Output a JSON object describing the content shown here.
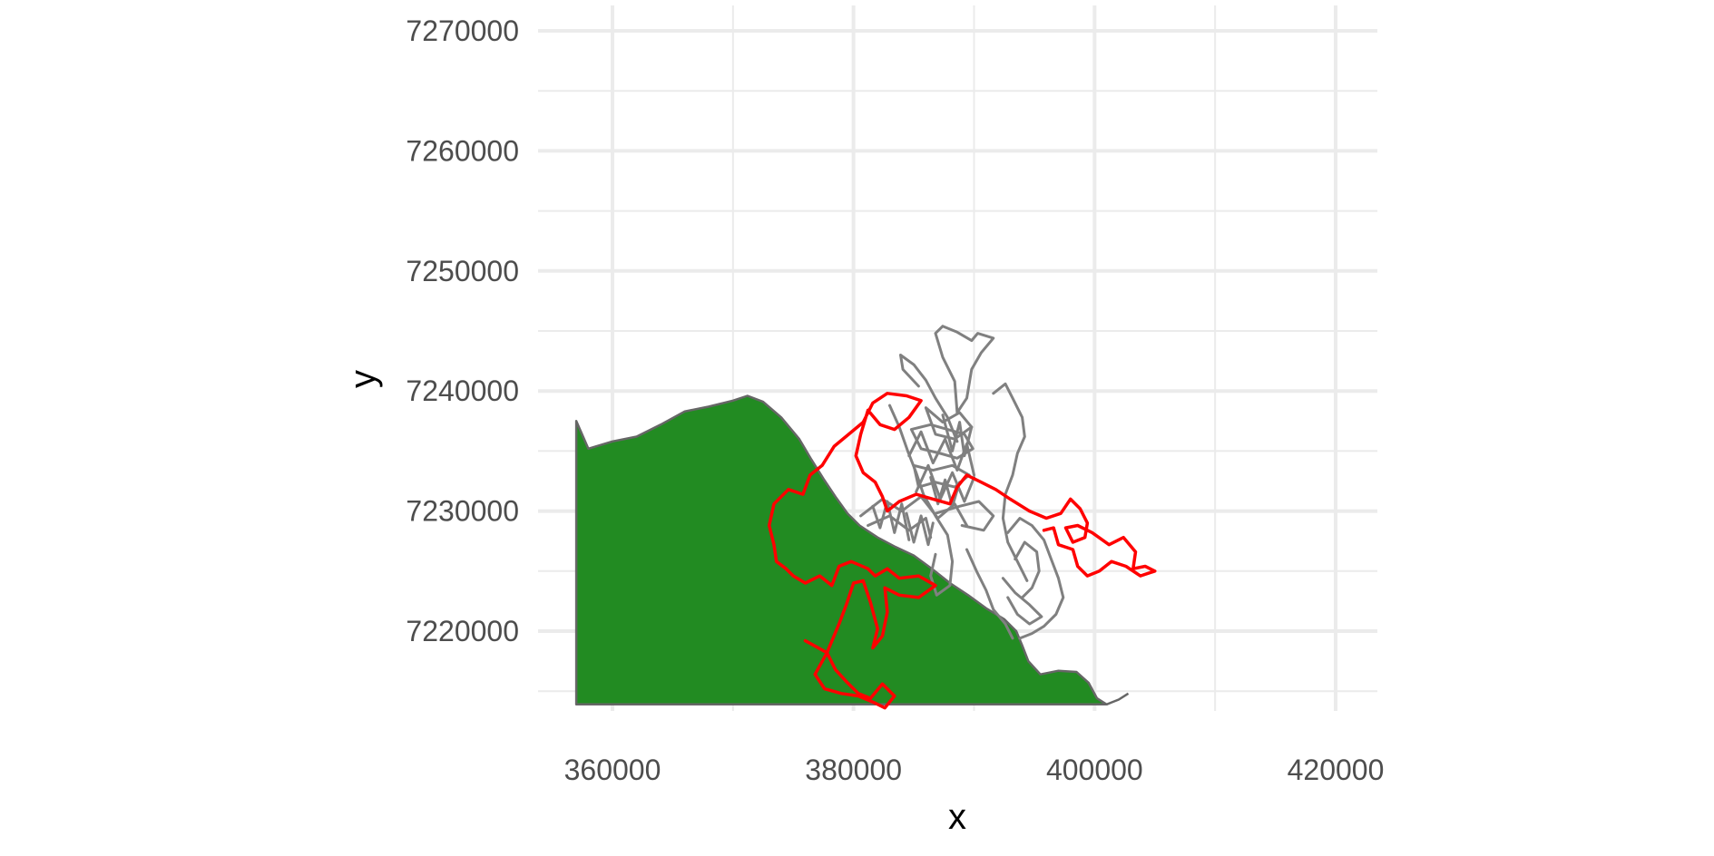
{
  "chart_data": {
    "type": "map",
    "title": "",
    "xlabel": "x",
    "ylabel": "y",
    "xlim": [
      354000,
      424000
    ],
    "ylim": [
      7213000,
      7271000
    ],
    "x_ticks": [
      360000,
      380000,
      400000,
      420000
    ],
    "x_tick_labels": [
      "360000",
      "380000",
      "400000",
      "420000"
    ],
    "y_ticks": [
      7220000,
      7230000,
      7240000,
      7250000,
      7260000,
      7270000
    ],
    "y_tick_labels": [
      "7220000",
      "7230000",
      "7240000",
      "7250000",
      "7260000",
      "7270000"
    ],
    "grid": true,
    "legend": "none",
    "colors": {
      "land_fill": "#228B22",
      "land_outline": "#666666",
      "gray_tracks": "#808080",
      "red_track": "#ff0000",
      "grid": "#ebebeb",
      "tick_text": "#4d4d4d"
    },
    "land_polygon": [
      [
        357000,
        7213900
      ],
      [
        357000,
        7237500
      ],
      [
        358000,
        7235200
      ],
      [
        360000,
        7235800
      ],
      [
        362000,
        7236200
      ],
      [
        364000,
        7237200
      ],
      [
        366000,
        7238300
      ],
      [
        368000,
        7238700
      ],
      [
        370000,
        7239200
      ],
      [
        371200,
        7239600
      ],
      [
        372500,
        7239100
      ],
      [
        374000,
        7237800
      ],
      [
        375500,
        7236000
      ],
      [
        376500,
        7234300
      ],
      [
        377500,
        7232700
      ],
      [
        378500,
        7231200
      ],
      [
        379500,
        7229800
      ],
      [
        380500,
        7228800
      ],
      [
        382000,
        7227800
      ],
      [
        383500,
        7227000
      ],
      [
        385000,
        7226300
      ],
      [
        386500,
        7225200
      ],
      [
        388000,
        7224000
      ],
      [
        389500,
        7223000
      ],
      [
        391000,
        7221900
      ],
      [
        392500,
        7221000
      ],
      [
        393500,
        7220000
      ],
      [
        394000,
        7218800
      ],
      [
        394500,
        7217500
      ],
      [
        395500,
        7216400
      ],
      [
        397000,
        7216700
      ],
      [
        398500,
        7216600
      ],
      [
        399500,
        7215700
      ],
      [
        400200,
        7214400
      ],
      [
        401000,
        7213900
      ]
    ],
    "coast_extension": [
      [
        401000,
        7213900
      ],
      [
        401500,
        7214100
      ],
      [
        402000,
        7214300
      ],
      [
        402800,
        7214800
      ]
    ],
    "gray_tracks": [
      [
        [
          388600,
          7238200
        ],
        [
          388400,
          7240800
        ],
        [
          387400,
          7242800
        ],
        [
          386800,
          7244800
        ],
        [
          387400,
          7245400
        ],
        [
          388600,
          7244900
        ],
        [
          389800,
          7244200
        ],
        [
          390300,
          7244800
        ],
        [
          391600,
          7244400
        ],
        [
          390600,
          7243200
        ],
        [
          389800,
          7241800
        ],
        [
          389400,
          7239400
        ],
        [
          388600,
          7238200
        ]
      ],
      [
        [
          385400,
          7240400
        ],
        [
          384100,
          7241800
        ],
        [
          383900,
          7243000
        ],
        [
          385000,
          7242200
        ],
        [
          386000,
          7240900
        ],
        [
          386800,
          7239400
        ],
        [
          387800,
          7237800
        ],
        [
          388600,
          7235800
        ]
      ],
      [
        [
          383000,
          7238800
        ],
        [
          383800,
          7237000
        ],
        [
          384500,
          7235000
        ],
        [
          385200,
          7233200
        ],
        [
          385800,
          7231400
        ],
        [
          386800,
          7229600
        ],
        [
          387800,
          7228000
        ],
        [
          388200,
          7225800
        ],
        [
          388000,
          7223800
        ],
        [
          386900,
          7223000
        ],
        [
          386400,
          7224600
        ],
        [
          386800,
          7226400
        ]
      ],
      [
        [
          384800,
          7236800
        ],
        [
          386400,
          7237200
        ],
        [
          387800,
          7236800
        ],
        [
          389200,
          7236400
        ],
        [
          389900,
          7235200
        ],
        [
          388600,
          7234400
        ],
        [
          387200,
          7234800
        ],
        [
          385600,
          7235200
        ],
        [
          384800,
          7236800
        ]
      ],
      [
        [
          385000,
          7233800
        ],
        [
          386600,
          7233400
        ],
        [
          388200,
          7233800
        ],
        [
          389600,
          7233000
        ],
        [
          388400,
          7232000
        ],
        [
          386800,
          7232400
        ],
        [
          385400,
          7232000
        ],
        [
          385000,
          7233800
        ]
      ],
      [
        [
          386000,
          7238600
        ],
        [
          387400,
          7237400
        ],
        [
          388800,
          7238200
        ],
        [
          389800,
          7237000
        ],
        [
          388400,
          7236000
        ],
        [
          386800,
          7236400
        ],
        [
          386000,
          7238600
        ]
      ],
      [
        [
          384600,
          7234600
        ],
        [
          385600,
          7236600
        ],
        [
          386600,
          7234000
        ],
        [
          387600,
          7236000
        ],
        [
          388600,
          7233400
        ],
        [
          389400,
          7235600
        ],
        [
          390000,
          7233000
        ]
      ],
      [
        [
          385200,
          7231600
        ],
        [
          386200,
          7233800
        ],
        [
          387200,
          7231000
        ],
        [
          388200,
          7233200
        ],
        [
          389200,
          7230800
        ],
        [
          390000,
          7232800
        ]
      ],
      [
        [
          386800,
          7229800
        ],
        [
          388800,
          7230400
        ],
        [
          390400,
          7230800
        ],
        [
          391600,
          7229600
        ],
        [
          390800,
          7228400
        ],
        [
          389000,
          7228800
        ]
      ],
      [
        [
          391600,
          7239800
        ],
        [
          392600,
          7240600
        ],
        [
          393200,
          7239400
        ],
        [
          394000,
          7237800
        ],
        [
          394200,
          7236200
        ],
        [
          393600,
          7234800
        ],
        [
          393200,
          7233000
        ],
        [
          392600,
          7231400
        ],
        [
          392400,
          7229400
        ],
        [
          392800,
          7227400
        ],
        [
          393600,
          7225800
        ],
        [
          394400,
          7224200
        ]
      ],
      [
        [
          389400,
          7226800
        ],
        [
          390200,
          7225000
        ],
        [
          391000,
          7223400
        ],
        [
          391600,
          7221800
        ],
        [
          392600,
          7220600
        ],
        [
          393200,
          7219400
        ]
      ],
      [
        [
          392800,
          7228200
        ],
        [
          393800,
          7229400
        ],
        [
          394800,
          7228800
        ],
        [
          395800,
          7227600
        ],
        [
          396400,
          7226000
        ],
        [
          397000,
          7224400
        ],
        [
          397400,
          7222800
        ],
        [
          396800,
          7221400
        ],
        [
          395800,
          7220400
        ],
        [
          394800,
          7219800
        ],
        [
          393800,
          7219400
        ]
      ],
      [
        [
          393400,
          7226000
        ],
        [
          394200,
          7227400
        ],
        [
          395200,
          7226600
        ],
        [
          395400,
          7225000
        ],
        [
          394800,
          7223600
        ],
        [
          394000,
          7222800
        ]
      ],
      [
        [
          392400,
          7224400
        ],
        [
          393400,
          7223200
        ],
        [
          394600,
          7222200
        ],
        [
          395600,
          7221200
        ],
        [
          394600,
          7220600
        ],
        [
          393600,
          7221400
        ],
        [
          392800,
          7222800
        ]
      ],
      [
        [
          380600,
          7229600
        ],
        [
          382400,
          7231000
        ],
        [
          384000,
          7230000
        ],
        [
          385600,
          7231200
        ],
        [
          387000,
          7229400
        ],
        [
          388400,
          7230600
        ],
        [
          389400,
          7228800
        ]
      ],
      [
        [
          381200,
          7228800
        ],
        [
          383000,
          7229600
        ],
        [
          384600,
          7228400
        ],
        [
          386000,
          7229400
        ],
        [
          386400,
          7227800
        ]
      ],
      [
        [
          381600,
          7230400
        ],
        [
          382200,
          7228600
        ],
        [
          382800,
          7230800
        ],
        [
          383400,
          7228200
        ],
        [
          384000,
          7230600
        ],
        [
          384600,
          7227600
        ]
      ],
      [
        [
          384400,
          7229800
        ],
        [
          385000,
          7227400
        ],
        [
          385600,
          7229600
        ],
        [
          386200,
          7227200
        ],
        [
          386600,
          7229000
        ]
      ],
      [
        [
          386400,
          7232800
        ],
        [
          387000,
          7230600
        ],
        [
          387600,
          7232600
        ],
        [
          388200,
          7230400
        ],
        [
          388800,
          7232400
        ]
      ],
      [
        [
          387400,
          7238000
        ],
        [
          388200,
          7235000
        ],
        [
          388800,
          7237400
        ],
        [
          389200,
          7234600
        ],
        [
          389800,
          7237000
        ]
      ]
    ],
    "red_track": [
      [
        376000,
        7219200
      ],
      [
        377800,
        7218200
      ],
      [
        378500,
        7216800
      ],
      [
        379400,
        7215800
      ],
      [
        380400,
        7214800
      ],
      [
        381400,
        7214400
      ],
      [
        382400,
        7215600
      ],
      [
        383400,
        7214600
      ],
      [
        382600,
        7213600
      ],
      [
        381800,
        7214000
      ],
      [
        380400,
        7214600
      ],
      [
        379000,
        7214800
      ],
      [
        377600,
        7215200
      ],
      [
        376800,
        7216400
      ],
      [
        377800,
        7218200
      ],
      [
        378800,
        7220600
      ],
      [
        379400,
        7222200
      ],
      [
        380000,
        7224000
      ],
      [
        380800,
        7224200
      ],
      [
        381400,
        7222400
      ],
      [
        382000,
        7220200
      ],
      [
        381600,
        7218600
      ],
      [
        382400,
        7219600
      ],
      [
        382800,
        7221600
      ],
      [
        382600,
        7223600
      ],
      [
        383800,
        7223000
      ],
      [
        385400,
        7222800
      ],
      [
        386800,
        7223800
      ],
      [
        385400,
        7224600
      ],
      [
        383800,
        7224400
      ],
      [
        382800,
        7225200
      ],
      [
        381800,
        7224600
      ],
      [
        381200,
        7225200
      ],
      [
        379800,
        7225800
      ],
      [
        378800,
        7225400
      ],
      [
        378200,
        7223800
      ],
      [
        377200,
        7224600
      ],
      [
        376000,
        7224000
      ],
      [
        375000,
        7224600
      ],
      [
        374400,
        7225200
      ],
      [
        373600,
        7225800
      ],
      [
        373400,
        7227200
      ],
      [
        373000,
        7228800
      ],
      [
        373400,
        7230600
      ],
      [
        374600,
        7231800
      ],
      [
        375800,
        7231400
      ],
      [
        376400,
        7233000
      ],
      [
        377400,
        7233800
      ],
      [
        378400,
        7235400
      ],
      [
        379600,
        7236400
      ],
      [
        380800,
        7237400
      ],
      [
        381600,
        7239000
      ],
      [
        382800,
        7239800
      ],
      [
        384400,
        7239600
      ],
      [
        385600,
        7239200
      ],
      [
        384600,
        7237800
      ],
      [
        383400,
        7236800
      ],
      [
        382200,
        7237200
      ],
      [
        381200,
        7238400
      ],
      [
        380600,
        7236400
      ],
      [
        380200,
        7234600
      ],
      [
        380800,
        7233200
      ],
      [
        381800,
        7232400
      ],
      [
        382400,
        7231200
      ],
      [
        382800,
        7230000
      ],
      [
        383800,
        7230800
      ],
      [
        385200,
        7231400
      ],
      [
        386600,
        7231000
      ],
      [
        388000,
        7230600
      ],
      [
        388600,
        7232000
      ],
      [
        389400,
        7233000
      ],
      [
        390600,
        7232400
      ],
      [
        391800,
        7231800
      ],
      [
        393000,
        7231000
      ],
      [
        394600,
        7230000
      ],
      [
        396000,
        7229400
      ],
      [
        397200,
        7229800
      ],
      [
        398000,
        7231000
      ],
      [
        398800,
        7230200
      ],
      [
        399400,
        7229000
      ],
      [
        399200,
        7227800
      ],
      [
        398200,
        7227400
      ],
      [
        397600,
        7228600
      ],
      [
        398600,
        7228800
      ],
      [
        399800,
        7228200
      ],
      [
        401200,
        7227200
      ],
      [
        402400,
        7227800
      ],
      [
        403400,
        7226600
      ],
      [
        403200,
        7225200
      ],
      [
        404200,
        7225400
      ],
      [
        405000,
        7225000
      ],
      [
        403800,
        7224600
      ],
      [
        402600,
        7225400
      ],
      [
        401400,
        7225800
      ],
      [
        400400,
        7225000
      ],
      [
        399400,
        7224600
      ],
      [
        398600,
        7225400
      ],
      [
        398200,
        7226800
      ],
      [
        397000,
        7227200
      ],
      [
        396600,
        7228600
      ],
      [
        395800,
        7228400
      ]
    ]
  }
}
